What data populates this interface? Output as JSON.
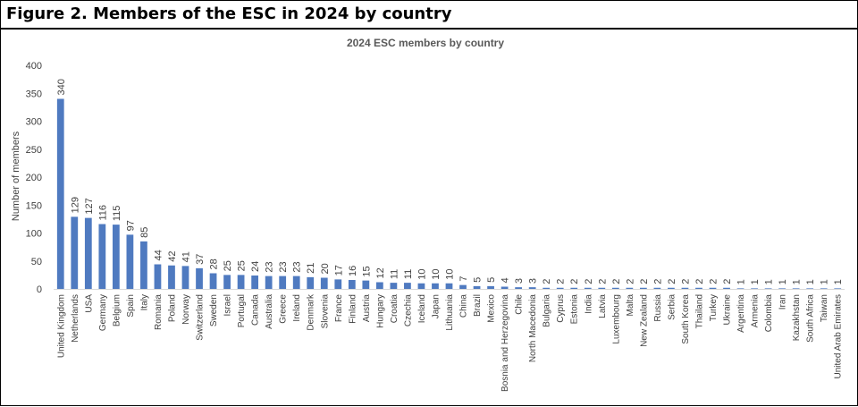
{
  "figure": {
    "title": "Figure 2. Members of the ESC in 2024 by country"
  },
  "chart_data": {
    "type": "bar",
    "title": "2024 ESC members by country",
    "xlabel": "",
    "ylabel": "Number of members",
    "ylim": [
      0,
      400
    ],
    "yticks": [
      0,
      50,
      100,
      150,
      200,
      250,
      300,
      350,
      400
    ],
    "grid": false,
    "legend": "none",
    "bar_color": "#4f7ac0",
    "categories": [
      "United Kingdom",
      "Netherlands",
      "USA",
      "Germany",
      "Belgium",
      "Spain",
      "Italy",
      "Romania",
      "Poland",
      "Norway",
      "Switzerland",
      "Sweden",
      "Israel",
      "Portugal",
      "Canada",
      "Australia",
      "Greece",
      "Ireland",
      "Denmark",
      "Slovenia",
      "France",
      "Finland",
      "Austria",
      "Hungary",
      "Croatia",
      "Czechia",
      "Iceland",
      "Japan",
      "Lithuania",
      "China",
      "Brazil",
      "Mexico",
      "Bosnia and Herzegovina",
      "Chile",
      "North Macedonia",
      "Bulgaria",
      "Cyprus",
      "Estonia",
      "India",
      "Latvia",
      "Luxembourg",
      "Malta",
      "New Zealand",
      "Russia",
      "Serbia",
      "South Korea",
      "Thailand",
      "Turkey",
      "Ukraine",
      "Argentina",
      "Armenia",
      "Colombia",
      "Iran",
      "Kazakhstan",
      "South Africa",
      "Taiwan",
      "United Arab Emirates"
    ],
    "values": [
      340,
      129,
      127,
      116,
      115,
      97,
      85,
      44,
      42,
      41,
      37,
      28,
      25,
      25,
      24,
      23,
      23,
      23,
      21,
      20,
      17,
      16,
      15,
      12,
      11,
      11,
      10,
      10,
      10,
      7,
      5,
      5,
      4,
      3,
      3,
      2,
      2,
      2,
      2,
      2,
      2,
      2,
      2,
      2,
      2,
      2,
      2,
      2,
      2,
      1,
      1,
      1,
      1,
      1,
      1,
      1,
      1
    ]
  }
}
